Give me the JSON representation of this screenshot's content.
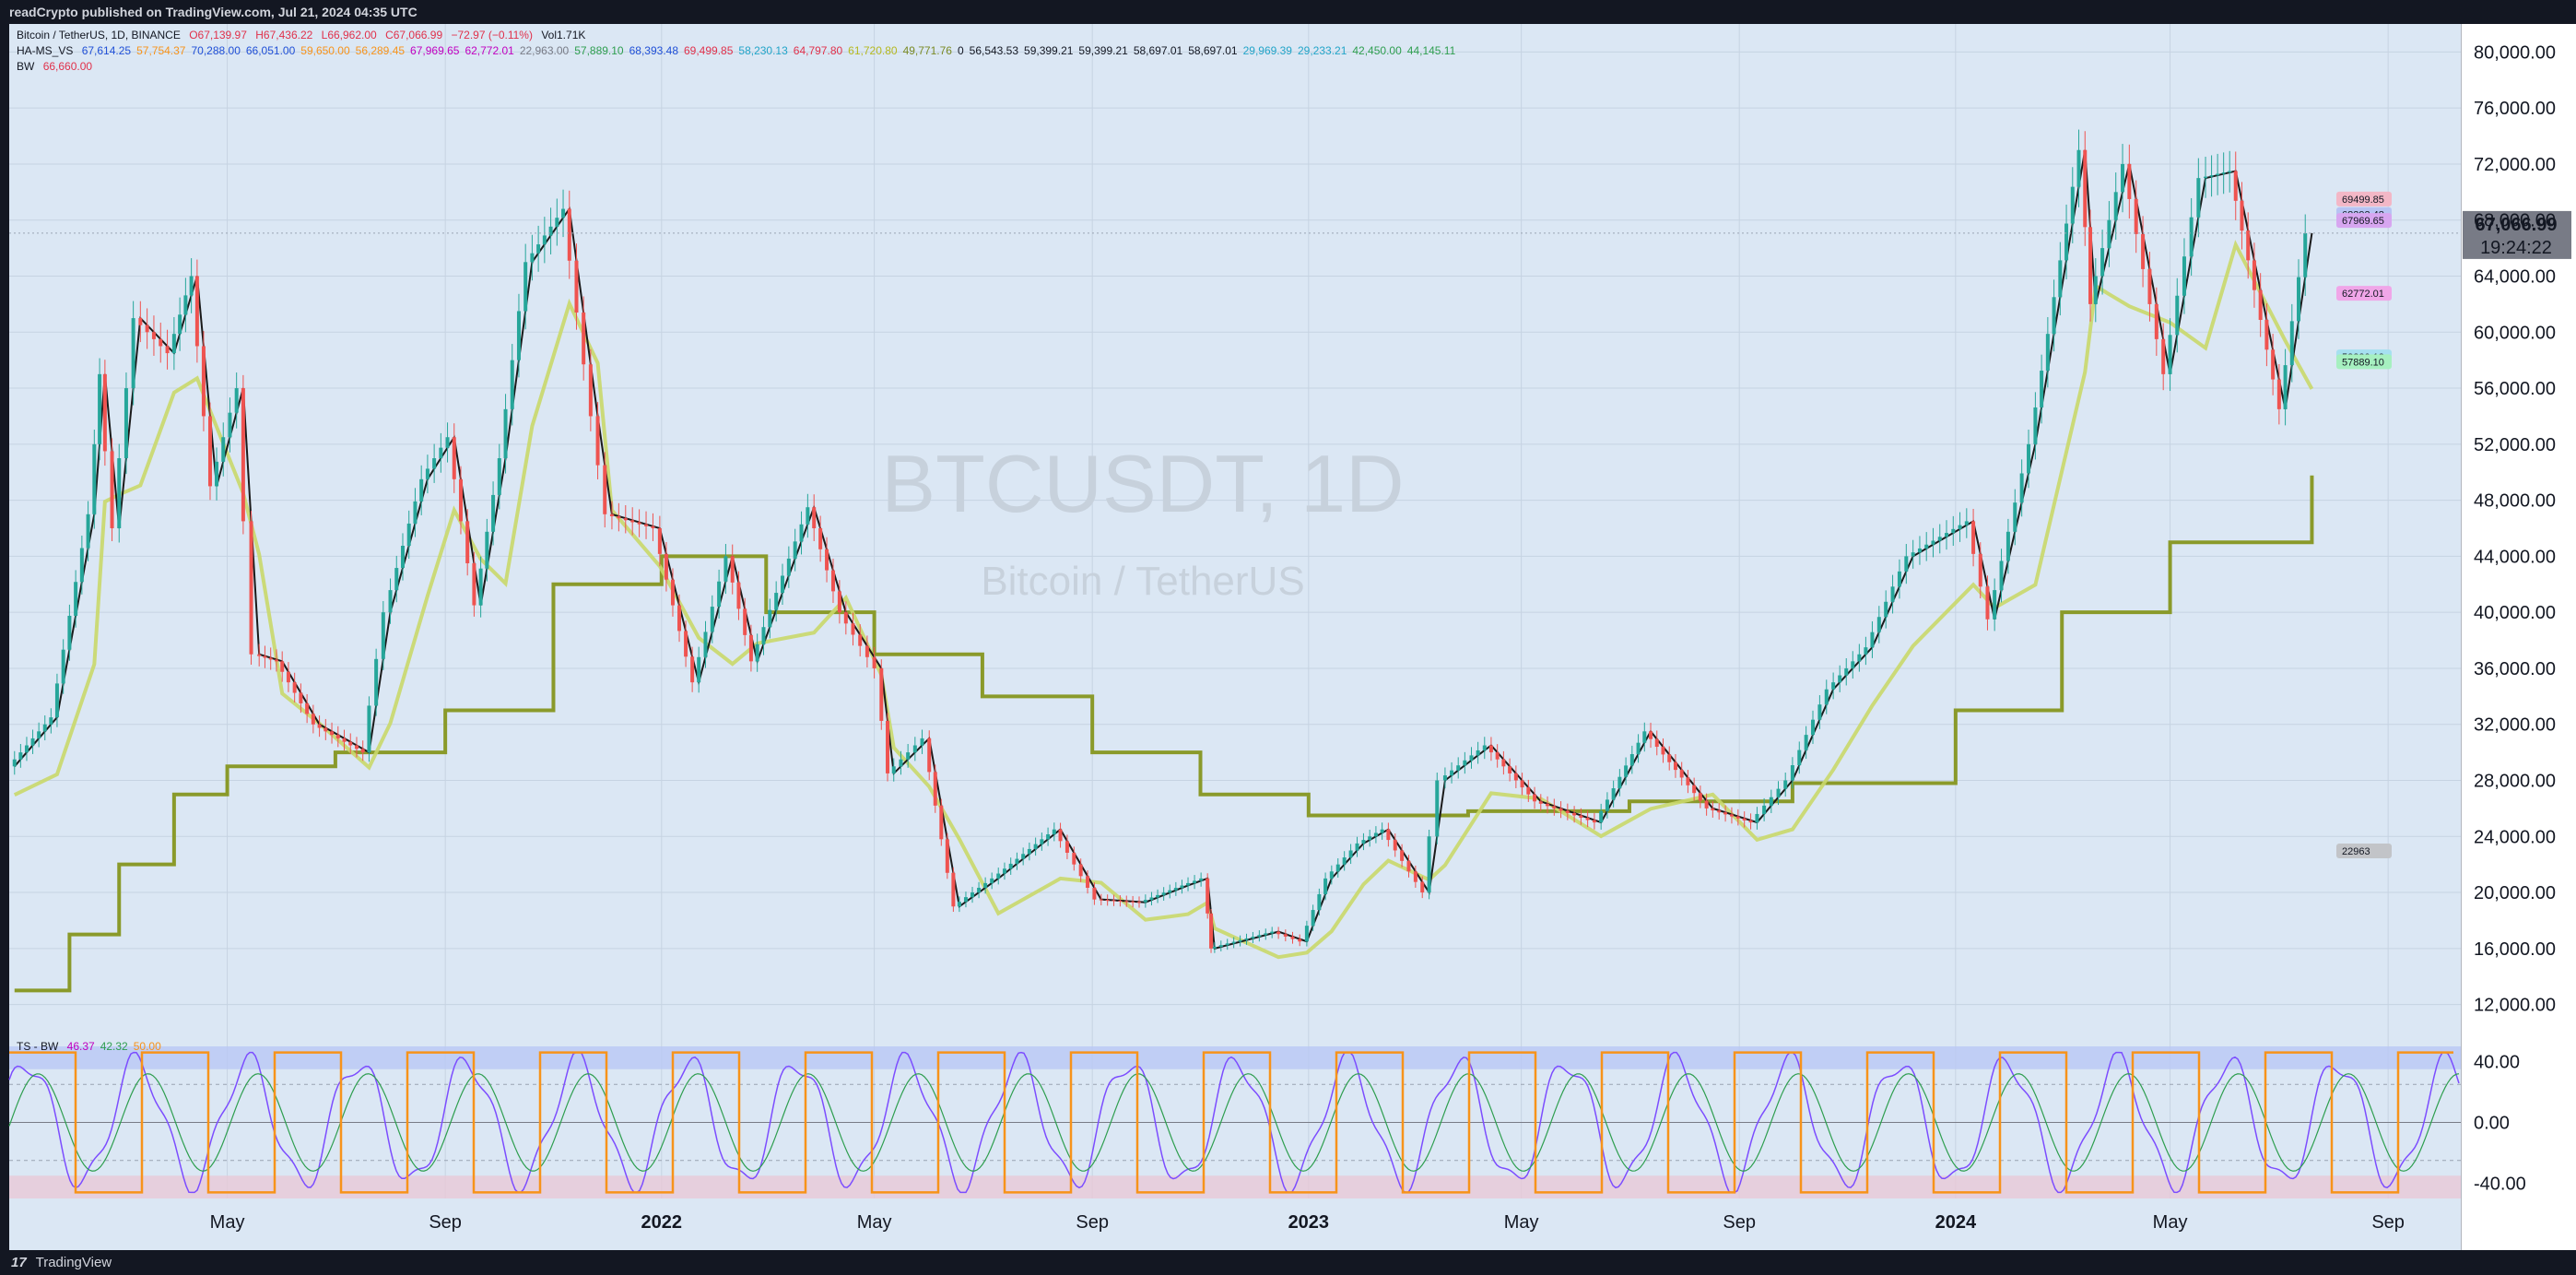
{
  "header": {
    "publisher_line": "readCrypto published on TradingView.com, Jul 21, 2024 04:35 UTC"
  },
  "footer": {
    "brand": "TradingView",
    "logo_glyph": "17"
  },
  "legend": {
    "line1": {
      "symbol": "Bitcoin / TetherUS, 1D, BINANCE",
      "open": "O67,139.97",
      "high": "H67,436.22",
      "low": "L66,962.00",
      "close": "C67,066.99",
      "change": "−72.97 (−0.11%)",
      "volume": "Vol1.71K"
    },
    "line2_label": "HA-MS_VS",
    "line2_values": [
      {
        "text": "67,614.25",
        "color": "#1f4fd6"
      },
      {
        "text": "57,754.37",
        "color": "#f7931a"
      },
      {
        "text": "70,288.00",
        "color": "#1f4fd6"
      },
      {
        "text": "66,051.00",
        "color": "#1f4fd6"
      },
      {
        "text": "59,650.00",
        "color": "#f7931a"
      },
      {
        "text": "56,289.45",
        "color": "#f7931a"
      },
      {
        "text": "67,969.65",
        "color": "#c000c0"
      },
      {
        "text": "62,772.01",
        "color": "#c000c0"
      },
      {
        "text": "22,963.00",
        "color": "#787b86"
      },
      {
        "text": "57,889.10",
        "color": "#2e9e4f"
      },
      {
        "text": "68,393.48",
        "color": "#1f4fd6"
      },
      {
        "text": "69,499.85",
        "color": "#e0314b"
      },
      {
        "text": "58,230.13",
        "color": "#22a4c8"
      },
      {
        "text": "64,797.80",
        "color": "#e0314b"
      },
      {
        "text": "",
        "color": "#d4c84a"
      },
      {
        "text": "61,720.80",
        "color": "#b5b820"
      },
      {
        "text": "49,771.76",
        "color": "#7a8a25"
      },
      {
        "text": "0",
        "color": "#131722"
      },
      {
        "text": "56,543.53",
        "color": "#131722"
      },
      {
        "text": "59,399.21",
        "color": "#131722"
      },
      {
        "text": "59,399.21",
        "color": "#131722"
      },
      {
        "text": "58,697.01",
        "color": "#131722"
      },
      {
        "text": "58,697.01",
        "color": "#131722"
      },
      {
        "text": "29,969.39",
        "color": "#22a4c8"
      },
      {
        "text": "29,233.21",
        "color": "#22a4c8"
      },
      {
        "text": "42,450.00",
        "color": "#2e9e4f"
      },
      {
        "text": "44,145.11",
        "color": "#2e9e4f"
      }
    ],
    "line3_label": "BW",
    "line3_value": "66,660.00",
    "osc_label": "TS - BW",
    "osc_values": [
      {
        "text": "46.37",
        "color": "#c000c0"
      },
      {
        "text": "42.32",
        "color": "#2e9e4f"
      },
      {
        "text": "50.00",
        "color": "#f7931a"
      }
    ]
  },
  "watermark": {
    "symbol": "BTCUSDT, 1D",
    "name": "Bitcoin / TetherUS"
  },
  "colors": {
    "background": "#dbe7f4",
    "candle_up": "#26a69a",
    "candle_down": "#ef5350",
    "stoch_osc": "#7c4dff",
    "orange": "#f7931a",
    "olive": "#8a9a2a",
    "lime": "#c9d86a"
  },
  "chart_data": {
    "type": "candlestick",
    "symbol": "BTCUSDT",
    "interval": "1D",
    "y_ticks": [
      "80,000.00",
      "76,000.00",
      "72,000.00",
      "68,000.00",
      "64,000.00",
      "60,000.00",
      "56,000.00",
      "52,000.00",
      "48,000.00",
      "44,000.00",
      "40,000.00",
      "36,000.00",
      "32,000.00",
      "28,000.00",
      "24,000.00",
      "20,000.00",
      "16,000.00",
      "12,000.00"
    ],
    "y_tick_values": [
      80000,
      76000,
      72000,
      68000,
      64000,
      60000,
      56000,
      52000,
      48000,
      44000,
      40000,
      36000,
      32000,
      28000,
      24000,
      20000,
      16000,
      12000
    ],
    "ylim": [
      10000,
      82000
    ],
    "x_ticks": [
      {
        "label": "May",
        "bold": false,
        "date": "2021-05-01"
      },
      {
        "label": "Sep",
        "bold": false,
        "date": "2021-09-01"
      },
      {
        "label": "2022",
        "bold": true,
        "date": "2022-01-01"
      },
      {
        "label": "May",
        "bold": false,
        "date": "2022-05-01"
      },
      {
        "label": "Sep",
        "bold": false,
        "date": "2022-09-01"
      },
      {
        "label": "2023",
        "bold": true,
        "date": "2023-01-01"
      },
      {
        "label": "May",
        "bold": false,
        "date": "2023-05-01"
      },
      {
        "label": "Sep",
        "bold": false,
        "date": "2023-09-01"
      },
      {
        "label": "2024",
        "bold": true,
        "date": "2024-01-01"
      },
      {
        "label": "May",
        "bold": false,
        "date": "2024-05-01"
      },
      {
        "label": "Sep",
        "bold": false,
        "date": "2024-09-01"
      }
    ],
    "xlim": [
      "2020-12-29",
      "2024-10-12"
    ],
    "last_price": {
      "value": 67066.99,
      "label": "67,066.99",
      "countdown": "19:24:22"
    },
    "price_tags": [
      {
        "label": "69499.85",
        "value": 69499.85,
        "color": "#f3b7c6"
      },
      {
        "label": "68393.48",
        "value": 68393.48,
        "color": "#b7c3f3"
      },
      {
        "label": "67969.65",
        "value": 67969.65,
        "color": "#d7a6f0"
      },
      {
        "label": "62772.01",
        "value": 62772.01,
        "color": "#f0a6e8"
      },
      {
        "label": "58230.13",
        "value": 58230.13,
        "color": "#a6e0f0"
      },
      {
        "label": "57889.10",
        "value": 57889.1,
        "color": "#a6f0c0"
      },
      {
        "label": "22963",
        "value": 22963,
        "color": "#c2c4c8"
      }
    ],
    "price_series": [
      [
        "2021-01-01",
        29000
      ],
      [
        "2021-01-25",
        32500
      ],
      [
        "2021-02-15",
        47000
      ],
      [
        "2021-02-21",
        57000
      ],
      [
        "2021-03-01",
        46000
      ],
      [
        "2021-03-13",
        61000
      ],
      [
        "2021-04-01",
        58500
      ],
      [
        "2021-04-14",
        64000
      ],
      [
        "2021-04-25",
        49000
      ],
      [
        "2021-05-10",
        56000
      ],
      [
        "2021-05-19",
        37000
      ],
      [
        "2021-06-01",
        36500
      ],
      [
        "2021-06-22",
        32000
      ],
      [
        "2021-07-20",
        30000
      ],
      [
        "2021-08-01",
        40000
      ],
      [
        "2021-08-22",
        49500
      ],
      [
        "2021-09-06",
        52500
      ],
      [
        "2021-09-21",
        40500
      ],
      [
        "2021-10-05",
        51000
      ],
      [
        "2021-10-20",
        65000
      ],
      [
        "2021-11-10",
        68800
      ],
      [
        "2021-11-26",
        54000
      ],
      [
        "2021-12-04",
        47000
      ],
      [
        "2021-12-31",
        46000
      ],
      [
        "2022-01-22",
        35000
      ],
      [
        "2022-02-10",
        44000
      ],
      [
        "2022-02-24",
        36500
      ],
      [
        "2022-03-28",
        47500
      ],
      [
        "2022-04-15",
        40000
      ],
      [
        "2022-05-05",
        36000
      ],
      [
        "2022-05-12",
        28500
      ],
      [
        "2022-06-01",
        31000
      ],
      [
        "2022-06-18",
        19000
      ],
      [
        "2022-07-10",
        21000
      ],
      [
        "2022-08-14",
        24500
      ],
      [
        "2022-09-06",
        19500
      ],
      [
        "2022-10-01",
        19300
      ],
      [
        "2022-10-25",
        20500
      ],
      [
        "2022-11-05",
        21000
      ],
      [
        "2022-11-09",
        16000
      ],
      [
        "2022-12-15",
        17200
      ],
      [
        "2022-12-31",
        16500
      ],
      [
        "2023-01-14",
        21000
      ],
      [
        "2023-02-01",
        23500
      ],
      [
        "2023-02-15",
        24500
      ],
      [
        "2023-03-10",
        20000
      ],
      [
        "2023-03-19",
        28000
      ],
      [
        "2023-04-14",
        30500
      ],
      [
        "2023-05-12",
        26500
      ],
      [
        "2023-06-15",
        25000
      ],
      [
        "2023-07-13",
        31500
      ],
      [
        "2023-08-17",
        26000
      ],
      [
        "2023-09-11",
        25000
      ],
      [
        "2023-10-01",
        28000
      ],
      [
        "2023-10-24",
        34500
      ],
      [
        "2023-11-15",
        37500
      ],
      [
        "2023-12-08",
        44000
      ],
      [
        "2024-01-11",
        46500
      ],
      [
        "2024-01-23",
        39500
      ],
      [
        "2024-02-15",
        52000
      ],
      [
        "2024-03-14",
        73000
      ],
      [
        "2024-03-20",
        62000
      ],
      [
        "2024-04-08",
        72000
      ],
      [
        "2024-05-01",
        57000
      ],
      [
        "2024-05-21",
        71000
      ],
      [
        "2024-06-07",
        71500
      ],
      [
        "2024-07-05",
        54500
      ],
      [
        "2024-07-20",
        67066.99
      ]
    ],
    "long_term_step_line": [
      [
        "2021-01-01",
        13000
      ],
      [
        "2021-02-01",
        17000
      ],
      [
        "2021-03-01",
        22000
      ],
      [
        "2021-04-01",
        27000
      ],
      [
        "2021-05-01",
        29000
      ],
      [
        "2021-07-01",
        30000
      ],
      [
        "2021-09-01",
        33000
      ],
      [
        "2021-11-01",
        42000
      ],
      [
        "2022-01-01",
        44000
      ],
      [
        "2022-03-01",
        40000
      ],
      [
        "2022-05-01",
        37000
      ],
      [
        "2022-07-01",
        34000
      ],
      [
        "2022-09-01",
        30000
      ],
      [
        "2022-11-01",
        27000
      ],
      [
        "2023-01-01",
        25500
      ],
      [
        "2023-04-01",
        25800
      ],
      [
        "2023-07-01",
        26500
      ],
      [
        "2023-10-01",
        27800
      ],
      [
        "2024-01-01",
        33000
      ],
      [
        "2024-03-01",
        40000
      ],
      [
        "2024-05-01",
        45000
      ],
      [
        "2024-07-20",
        49771.76
      ]
    ]
  },
  "oscillator": {
    "y_ticks": [
      "40.00",
      "0.00",
      "-40.00"
    ],
    "y_tick_values": [
      40,
      0,
      -40
    ],
    "ylim": [
      -50,
      50
    ],
    "upper_band": [
      35,
      50
    ],
    "lower_band": [
      -50,
      -35
    ]
  }
}
